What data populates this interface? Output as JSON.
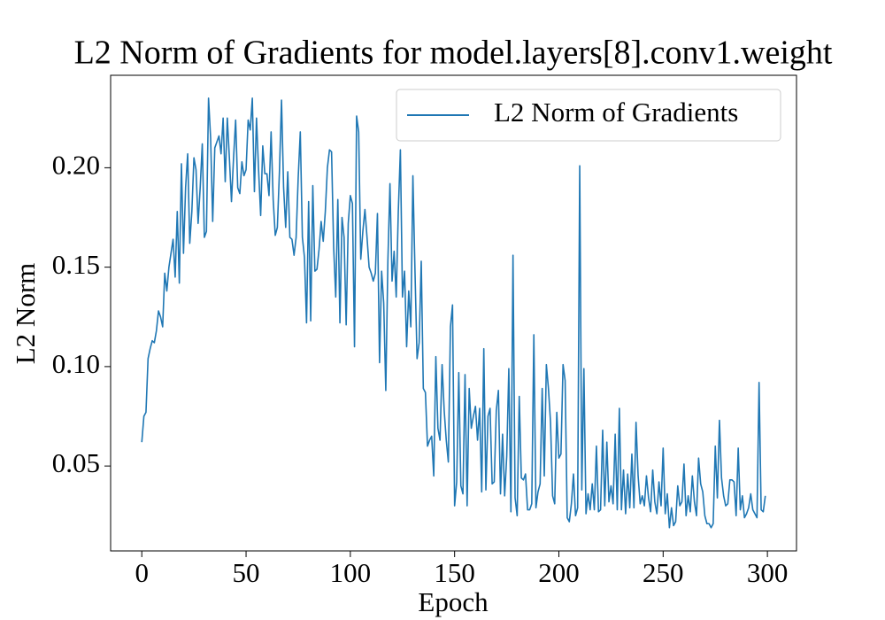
{
  "chart_data": {
    "type": "line",
    "title": "L2 Norm of Gradients for model.layers[8].conv1.weight",
    "x_label": "Epoch",
    "y_label": "L2 Norm",
    "legend": "upper right",
    "xlim": [
      -14.95,
      313.95
    ],
    "xticks": [
      0,
      50,
      100,
      150,
      200,
      250,
      300
    ],
    "ylim": [
      0.0073,
      0.2465
    ],
    "yticks": [
      {
        "value": 0.05,
        "label": "0.05"
      },
      {
        "value": 0.1,
        "label": "0.10"
      },
      {
        "value": 0.15,
        "label": "0.15"
      },
      {
        "value": 0.2,
        "label": "0.20"
      }
    ],
    "x": [
      0,
      1,
      2,
      3,
      4,
      5,
      6,
      7,
      8,
      9,
      10,
      11,
      12,
      13,
      14,
      15,
      16,
      17,
      18,
      19,
      20,
      21,
      22,
      23,
      24,
      25,
      26,
      27,
      28,
      29,
      30,
      31,
      32,
      33,
      34,
      35,
      36,
      37,
      38,
      39,
      40,
      41,
      42,
      43,
      44,
      45,
      46,
      47,
      48,
      49,
      50,
      51,
      52,
      53,
      54,
      55,
      56,
      57,
      58,
      59,
      60,
      61,
      62,
      63,
      64,
      65,
      66,
      67,
      68,
      69,
      70,
      71,
      72,
      73,
      74,
      75,
      76,
      77,
      78,
      79,
      80,
      81,
      82,
      83,
      84,
      85,
      86,
      87,
      88,
      89,
      90,
      91,
      92,
      93,
      94,
      95,
      96,
      97,
      98,
      99,
      100,
      101,
      102,
      103,
      104,
      105,
      106,
      107,
      108,
      109,
      110,
      111,
      112,
      113,
      114,
      115,
      116,
      117,
      118,
      119,
      120,
      121,
      122,
      123,
      124,
      125,
      126,
      127,
      128,
      129,
      130,
      131,
      132,
      133,
      134,
      135,
      136,
      137,
      138,
      139,
      140,
      141,
      142,
      143,
      144,
      145,
      146,
      147,
      148,
      149,
      150,
      151,
      152,
      153,
      154,
      155,
      156,
      157,
      158,
      159,
      160,
      161,
      162,
      163,
      164,
      165,
      166,
      167,
      168,
      169,
      170,
      171,
      172,
      173,
      174,
      175,
      176,
      177,
      178,
      179,
      180,
      181,
      182,
      183,
      184,
      185,
      186,
      187,
      188,
      189,
      190,
      191,
      192,
      193,
      194,
      195,
      196,
      197,
      198,
      199,
      200,
      201,
      202,
      203,
      204,
      205,
      206,
      207,
      208,
      209,
      210,
      211,
      212,
      213,
      214,
      215,
      216,
      217,
      218,
      219,
      220,
      221,
      222,
      223,
      224,
      225,
      226,
      227,
      228,
      229,
      230,
      231,
      232,
      233,
      234,
      235,
      236,
      237,
      238,
      239,
      240,
      241,
      242,
      243,
      244,
      245,
      246,
      247,
      248,
      249,
      250,
      251,
      252,
      253,
      254,
      255,
      256,
      257,
      258,
      259,
      260,
      261,
      262,
      263,
      264,
      265,
      266,
      267,
      268,
      269,
      270,
      271,
      272,
      273,
      274,
      275,
      276,
      277,
      278,
      279,
      280,
      281,
      282,
      283,
      284,
      285,
      286,
      287,
      288,
      289,
      290,
      291,
      292,
      293,
      294,
      295,
      296,
      297,
      298,
      299
    ],
    "series": [
      {
        "name": "L2 Norm of Gradients",
        "color": "#1f77b4",
        "values": [
          0.062,
          0.075,
          0.077,
          0.104,
          0.109,
          0.113,
          0.112,
          0.118,
          0.128,
          0.125,
          0.12,
          0.147,
          0.138,
          0.15,
          0.157,
          0.164,
          0.145,
          0.178,
          0.142,
          0.202,
          0.157,
          0.19,
          0.207,
          0.162,
          0.178,
          0.205,
          0.199,
          0.172,
          0.19,
          0.212,
          0.165,
          0.168,
          0.235,
          0.215,
          0.173,
          0.21,
          0.213,
          0.216,
          0.207,
          0.225,
          0.193,
          0.225,
          0.205,
          0.183,
          0.205,
          0.224,
          0.19,
          0.187,
          0.203,
          0.196,
          0.199,
          0.224,
          0.219,
          0.235,
          0.188,
          0.225,
          0.199,
          0.176,
          0.211,
          0.197,
          0.197,
          0.186,
          0.218,
          0.184,
          0.166,
          0.17,
          0.198,
          0.234,
          0.19,
          0.17,
          0.198,
          0.165,
          0.164,
          0.156,
          0.165,
          0.195,
          0.218,
          0.165,
          0.155,
          0.122,
          0.183,
          0.123,
          0.191,
          0.148,
          0.149,
          0.159,
          0.173,
          0.163,
          0.178,
          0.2,
          0.209,
          0.208,
          0.16,
          0.135,
          0.184,
          0.122,
          0.175,
          0.165,
          0.121,
          0.172,
          0.186,
          0.182,
          0.11,
          0.226,
          0.218,
          0.154,
          0.168,
          0.179,
          0.165,
          0.15,
          0.147,
          0.143,
          0.147,
          0.177,
          0.102,
          0.148,
          0.132,
          0.088,
          0.153,
          0.192,
          0.143,
          0.158,
          0.135,
          0.178,
          0.209,
          0.135,
          0.148,
          0.11,
          0.138,
          0.12,
          0.196,
          0.148,
          0.104,
          0.112,
          0.153,
          0.089,
          0.087,
          0.06,
          0.063,
          0.065,
          0.045,
          0.105,
          0.069,
          0.063,
          0.101,
          0.078,
          0.063,
          0.052,
          0.12,
          0.131,
          0.03,
          0.042,
          0.097,
          0.04,
          0.036,
          0.096,
          0.03,
          0.089,
          0.069,
          0.075,
          0.08,
          0.063,
          0.079,
          0.037,
          0.109,
          0.038,
          0.075,
          0.079,
          0.041,
          0.042,
          0.078,
          0.088,
          0.036,
          0.066,
          0.035,
          0.055,
          0.099,
          0.027,
          0.156,
          0.034,
          0.025,
          0.085,
          0.044,
          0.043,
          0.046,
          0.028,
          0.028,
          0.031,
          0.116,
          0.029,
          0.037,
          0.041,
          0.089,
          0.045,
          0.101,
          0.089,
          0.072,
          0.035,
          0.031,
          0.077,
          0.054,
          0.056,
          0.101,
          0.093,
          0.024,
          0.022,
          0.031,
          0.046,
          0.025,
          0.029,
          0.201,
          0.038,
          0.099,
          0.026,
          0.036,
          0.028,
          0.041,
          0.028,
          0.06,
          0.027,
          0.028,
          0.068,
          0.03,
          0.062,
          0.032,
          0.04,
          0.031,
          0.066,
          0.028,
          0.079,
          0.028,
          0.048,
          0.026,
          0.046,
          0.029,
          0.056,
          0.029,
          0.072,
          0.045,
          0.031,
          0.035,
          0.03,
          0.045,
          0.034,
          0.027,
          0.048,
          0.032,
          0.026,
          0.042,
          0.03,
          0.059,
          0.026,
          0.036,
          0.019,
          0.029,
          0.02,
          0.022,
          0.04,
          0.03,
          0.032,
          0.051,
          0.025,
          0.035,
          0.027,
          0.045,
          0.032,
          0.025,
          0.054,
          0.041,
          0.037,
          0.025,
          0.021,
          0.021,
          0.019,
          0.021,
          0.06,
          0.034,
          0.073,
          0.044,
          0.035,
          0.03,
          0.031,
          0.043,
          0.043,
          0.042,
          0.025,
          0.059,
          0.028,
          0.035,
          0.024,
          0.026,
          0.029,
          0.036,
          0.028,
          0.026,
          0.024,
          0.092,
          0.028,
          0.027,
          0.035
        ]
      }
    ]
  }
}
